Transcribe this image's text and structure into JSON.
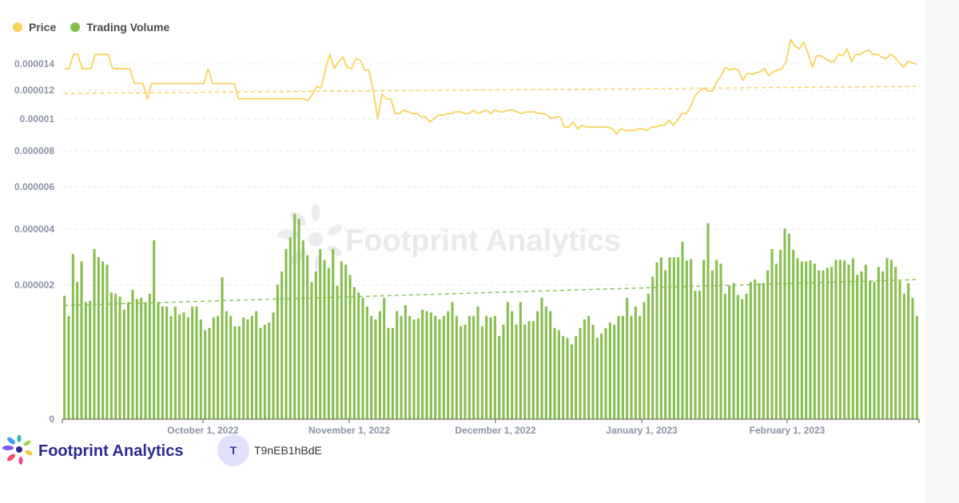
{
  "legend": {
    "price_label": "Price",
    "volume_label": "Trading Volume"
  },
  "colors": {
    "price": "#f6d35b",
    "volume": "#86bf4f",
    "grid": "#e6e6ea",
    "axis_text": "#8a93a6",
    "brand": "#2b2b8f"
  },
  "brand": {
    "name": "Footprint Analytics",
    "watermark": "Footprint Analytics",
    "icon": "footprint-logo-icon"
  },
  "user": {
    "avatar_letter": "T",
    "name": "T9nEB1hBdE"
  },
  "chart_data": {
    "type": "bar+line",
    "y_ticks": [
      "0.000014",
      "0.000012",
      "0.00001",
      "0.000008",
      "0.000006",
      "0.000004",
      "0.000002",
      "0"
    ],
    "x_ticks": [
      "October 1, 2022",
      "November 1, 2022",
      "December 1, 2022",
      "January 1, 2023",
      "February 1, 2023"
    ],
    "grid": true,
    "legend_position": "top-left",
    "series": [
      {
        "name": "Price",
        "type": "line",
        "values": [
          1.21e-05,
          1.21e-05,
          1.31e-05,
          1.31e-05,
          1.21e-05,
          1.21e-05,
          1.21e-05,
          1.31e-05,
          1.31e-05,
          1.31e-05,
          1.31e-05,
          1.21e-05,
          1.21e-05,
          1.21e-05,
          1.21e-05,
          1.21e-05,
          1.11e-05,
          1.11e-05,
          1.11e-05,
          1.01e-05,
          1.11e-05,
          1.11e-05,
          1.11e-05,
          1.11e-05,
          1.11e-05,
          1.11e-05,
          1.11e-05,
          1.11e-05,
          1.11e-05,
          1.11e-05,
          1.11e-05,
          1.11e-05,
          1.11e-05,
          1.21e-05,
          1.11e-05,
          1.11e-05,
          1.11e-05,
          1.11e-05,
          1.11e-05,
          1.11e-05,
          1.01e-05,
          1.01e-05,
          1.01e-05,
          1.01e-05,
          1.01e-05,
          1.01e-05,
          1.01e-05,
          1.01e-05,
          1.01e-05,
          1.01e-05,
          1.01e-05,
          1.01e-05,
          1.01e-05,
          1.01e-05,
          1.01e-05,
          1.01e-05,
          1e-05,
          1.04e-05,
          1.09e-05,
          1.08e-05,
          1.21e-05,
          1.31e-05,
          1.21e-05,
          1.26e-05,
          1.29e-05,
          1.22e-05,
          1.21e-05,
          1.28e-05,
          1.27e-05,
          1.2e-05,
          1.2e-05,
          1.06e-05,
          8.9e-06,
          1.04e-05,
          1.01e-05,
          1.01e-05,
          9.2e-06,
          9.2e-06,
          9.4e-06,
          9.3e-06,
          9.2e-06,
          9.2e-06,
          9e-06,
          9e-06,
          8.7e-06,
          8.9e-06,
          9.1e-06,
          9.1e-06,
          9.2e-06,
          9.2e-06,
          9.3e-06,
          9.3e-06,
          9.2e-06,
          9.2e-06,
          9.4e-06,
          9.2e-06,
          9.3e-06,
          9.4e-06,
          9.2e-06,
          9.4e-06,
          9.3e-06,
          9.3e-06,
          9.4e-06,
          9.4e-06,
          9.3e-06,
          9.2e-06,
          9.3e-06,
          9.3e-06,
          9.3e-06,
          9.2e-06,
          9.2e-06,
          9.1e-06,
          8.9e-06,
          9e-06,
          9e-06,
          8.4e-06,
          8.4e-06,
          8.7e-06,
          8.3e-06,
          8.5e-06,
          8.4e-06,
          8.4e-06,
          8.4e-06,
          8.4e-06,
          8.4e-06,
          8.4e-06,
          8.3e-06,
          8e-06,
          8.3e-06,
          8.2e-06,
          8.2e-06,
          8.2e-06,
          8.3e-06,
          8.3e-06,
          8.2e-06,
          8.4e-06,
          8.4e-06,
          8.5e-06,
          8.5e-06,
          8.8e-06,
          8.5e-06,
          8.8e-06,
          9.2e-06,
          9.2e-06,
          9.6e-06,
          1.03e-05,
          1.06e-05,
          1.08e-05,
          1.06e-05,
          1.06e-05,
          1.12e-05,
          1.16e-05,
          1.22e-05,
          1.2e-05,
          1.21e-05,
          1.2e-05,
          1.13e-05,
          1.18e-05,
          1.17e-05,
          1.18e-05,
          1.19e-05,
          1.21e-05,
          1.16e-05,
          1.19e-05,
          1.2e-05,
          1.21e-05,
          1.26e-05,
          1.42e-05,
          1.37e-05,
          1.35e-05,
          1.4e-05,
          1.32e-05,
          1.22e-05,
          1.3e-05,
          1.3e-05,
          1.28e-05,
          1.26e-05,
          1.26e-05,
          1.31e-05,
          1.3e-05,
          1.35e-05,
          1.26e-05,
          1.31e-05,
          1.31e-05,
          1.33e-05,
          1.34e-05,
          1.31e-05,
          1.31e-05,
          1.29e-05,
          1.28e-05,
          1.31e-05,
          1.29e-05,
          1.25e-05,
          1.22e-05,
          1.26e-05,
          1.25e-05,
          1.24e-05
        ]
      },
      {
        "name": "Trading Volume",
        "type": "bar",
        "values": [
          1.5,
          1.05,
          2.68,
          1.85,
          2.45,
          1.35,
          1.38,
          2.85,
          2.58,
          2.45,
          2.35,
          1.58,
          1.55,
          1.48,
          1.18,
          1.35,
          1.65,
          1.42,
          1.45,
          1.32,
          1.55,
          3.15,
          1.35,
          1.25,
          1.25,
          1.05,
          1.25,
          1.08,
          1.12,
          1.02,
          1.25,
          1.25,
          0.98,
          0.78,
          0.82,
          1.02,
          1.05,
          1.98,
          1.15,
          1.05,
          0.85,
          0.85,
          1.02,
          0.98,
          1.05,
          1.15,
          0.82,
          0.88,
          0.92,
          1.12,
          1.78,
          2.15,
          2.85,
          3.25,
          4.15,
          3.95,
          3.15,
          2.65,
          1.85,
          2.15,
          2.85,
          2.5,
          2.25,
          2.85,
          1.75,
          2.45,
          2.35,
          2.05,
          1.72,
          1.58,
          1.45,
          1.25,
          1.05,
          0.98,
          1.15,
          1.45,
          0.82,
          0.82,
          1.15,
          1.05,
          1.28,
          1.05,
          0.98,
          1.0,
          1.18,
          1.15,
          1.12,
          1.05,
          0.98,
          1.05,
          1.15,
          1.35,
          1.05,
          0.85,
          0.88,
          1.05,
          1.05,
          1.25,
          0.85,
          1.05,
          1.02,
          1.05,
          0.68,
          0.88,
          1.35,
          1.15,
          0.88,
          1.35,
          0.88,
          0.95,
          0.95,
          1.15,
          1.45,
          1.25,
          1.15,
          0.82,
          0.78,
          0.68,
          0.65,
          0.55,
          0.68,
          0.82,
          0.98,
          1.05,
          0.88,
          0.65,
          0.72,
          0.82,
          0.92,
          0.88,
          1.05,
          1.05,
          1.45,
          1.05,
          1.25,
          1.05,
          1.35,
          1.55,
          2.0,
          2.42,
          2.58,
          2.18,
          2.58,
          2.58,
          2.58,
          3.1,
          2.48,
          2.52,
          1.62,
          1.62,
          2.5,
          3.78,
          2.18,
          2.5,
          2.38,
          1.55,
          1.75,
          1.82,
          1.52,
          1.42,
          1.55,
          1.85,
          1.92,
          1.82,
          1.82,
          2.18,
          2.85,
          2.38,
          2.82,
          3.58,
          3.38,
          2.82,
          2.55,
          2.45,
          2.45,
          2.48,
          2.38,
          2.18,
          2.18,
          2.25,
          2.28,
          2.5,
          2.5,
          2.48,
          2.35,
          2.55,
          2.05,
          2.15,
          2.35,
          1.88,
          1.85,
          2.28,
          2.15,
          2.55,
          2.5,
          2.28,
          1.88,
          1.55,
          1.82,
          1.45,
          1.05
        ]
      }
    ]
  }
}
